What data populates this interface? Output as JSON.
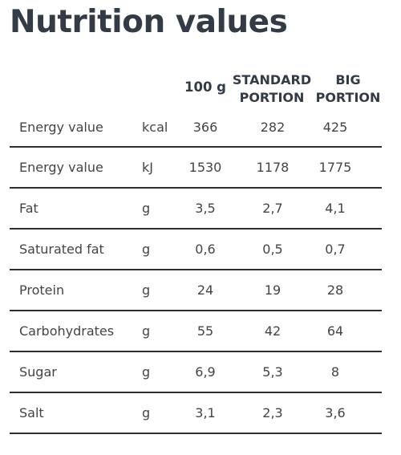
{
  "title": "Nutrition values",
  "columns": {
    "per_100g": "100 g",
    "standard_line1": "STANDARD",
    "standard_line2": "PORTION",
    "big_line1": "BIG",
    "big_line2": "PORTION"
  },
  "rows": [
    {
      "name": "Energy value",
      "unit": "kcal",
      "per_100g": "366",
      "standard": "282",
      "big": "425"
    },
    {
      "name": "Energy value",
      "unit": "kJ",
      "per_100g": "1530",
      "standard": "1178",
      "big": "1775"
    },
    {
      "name": "Fat",
      "unit": "g",
      "per_100g": "3,5",
      "standard": "2,7",
      "big": "4,1"
    },
    {
      "name": "Saturated fat",
      "unit": "g",
      "per_100g": "0,6",
      "standard": "0,5",
      "big": "0,7"
    },
    {
      "name": "Protein",
      "unit": "g",
      "per_100g": "24",
      "standard": "19",
      "big": "28"
    },
    {
      "name": "Carbohydrates",
      "unit": "g",
      "per_100g": "55",
      "standard": "42",
      "big": "64"
    },
    {
      "name": "Sugar",
      "unit": "g",
      "per_100g": "6,9",
      "standard": "5,3",
      "big": "8"
    },
    {
      "name": "Salt",
      "unit": "g",
      "per_100g": "3,1",
      "standard": "2,3",
      "big": "3,6"
    }
  ]
}
